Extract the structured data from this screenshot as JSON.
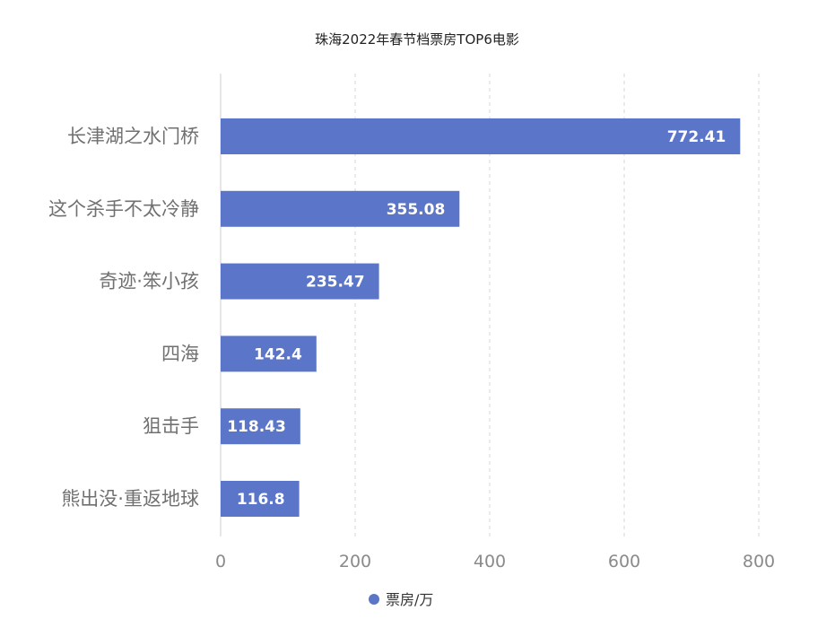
{
  "chart_data": {
    "type": "bar",
    "orientation": "horizontal",
    "title": "珠海2022年春节档票房TOP6电影",
    "categories": [
      "长津湖之水门桥",
      "这个杀手不太冷静",
      "奇迹·笨小孩",
      "四海",
      "狙击手",
      "熊出没·重返地球"
    ],
    "series": [
      {
        "name": "票房/万",
        "values": [
          772.41,
          355.08,
          235.47,
          142.4,
          118.43,
          116.8
        ],
        "color": "#5b76c8"
      }
    ],
    "value_labels": [
      "772.41",
      "355.08",
      "235.47",
      "142.4",
      "118.43",
      "116.8"
    ],
    "xlim": [
      0,
      800
    ],
    "xticks": [
      0,
      200,
      400,
      600,
      800
    ],
    "tick_labels": [
      "0",
      "200",
      "400",
      "600",
      "800"
    ],
    "xlabel": "",
    "ylabel": "",
    "grid": "vertical dashed",
    "legend_position": "bottom"
  }
}
